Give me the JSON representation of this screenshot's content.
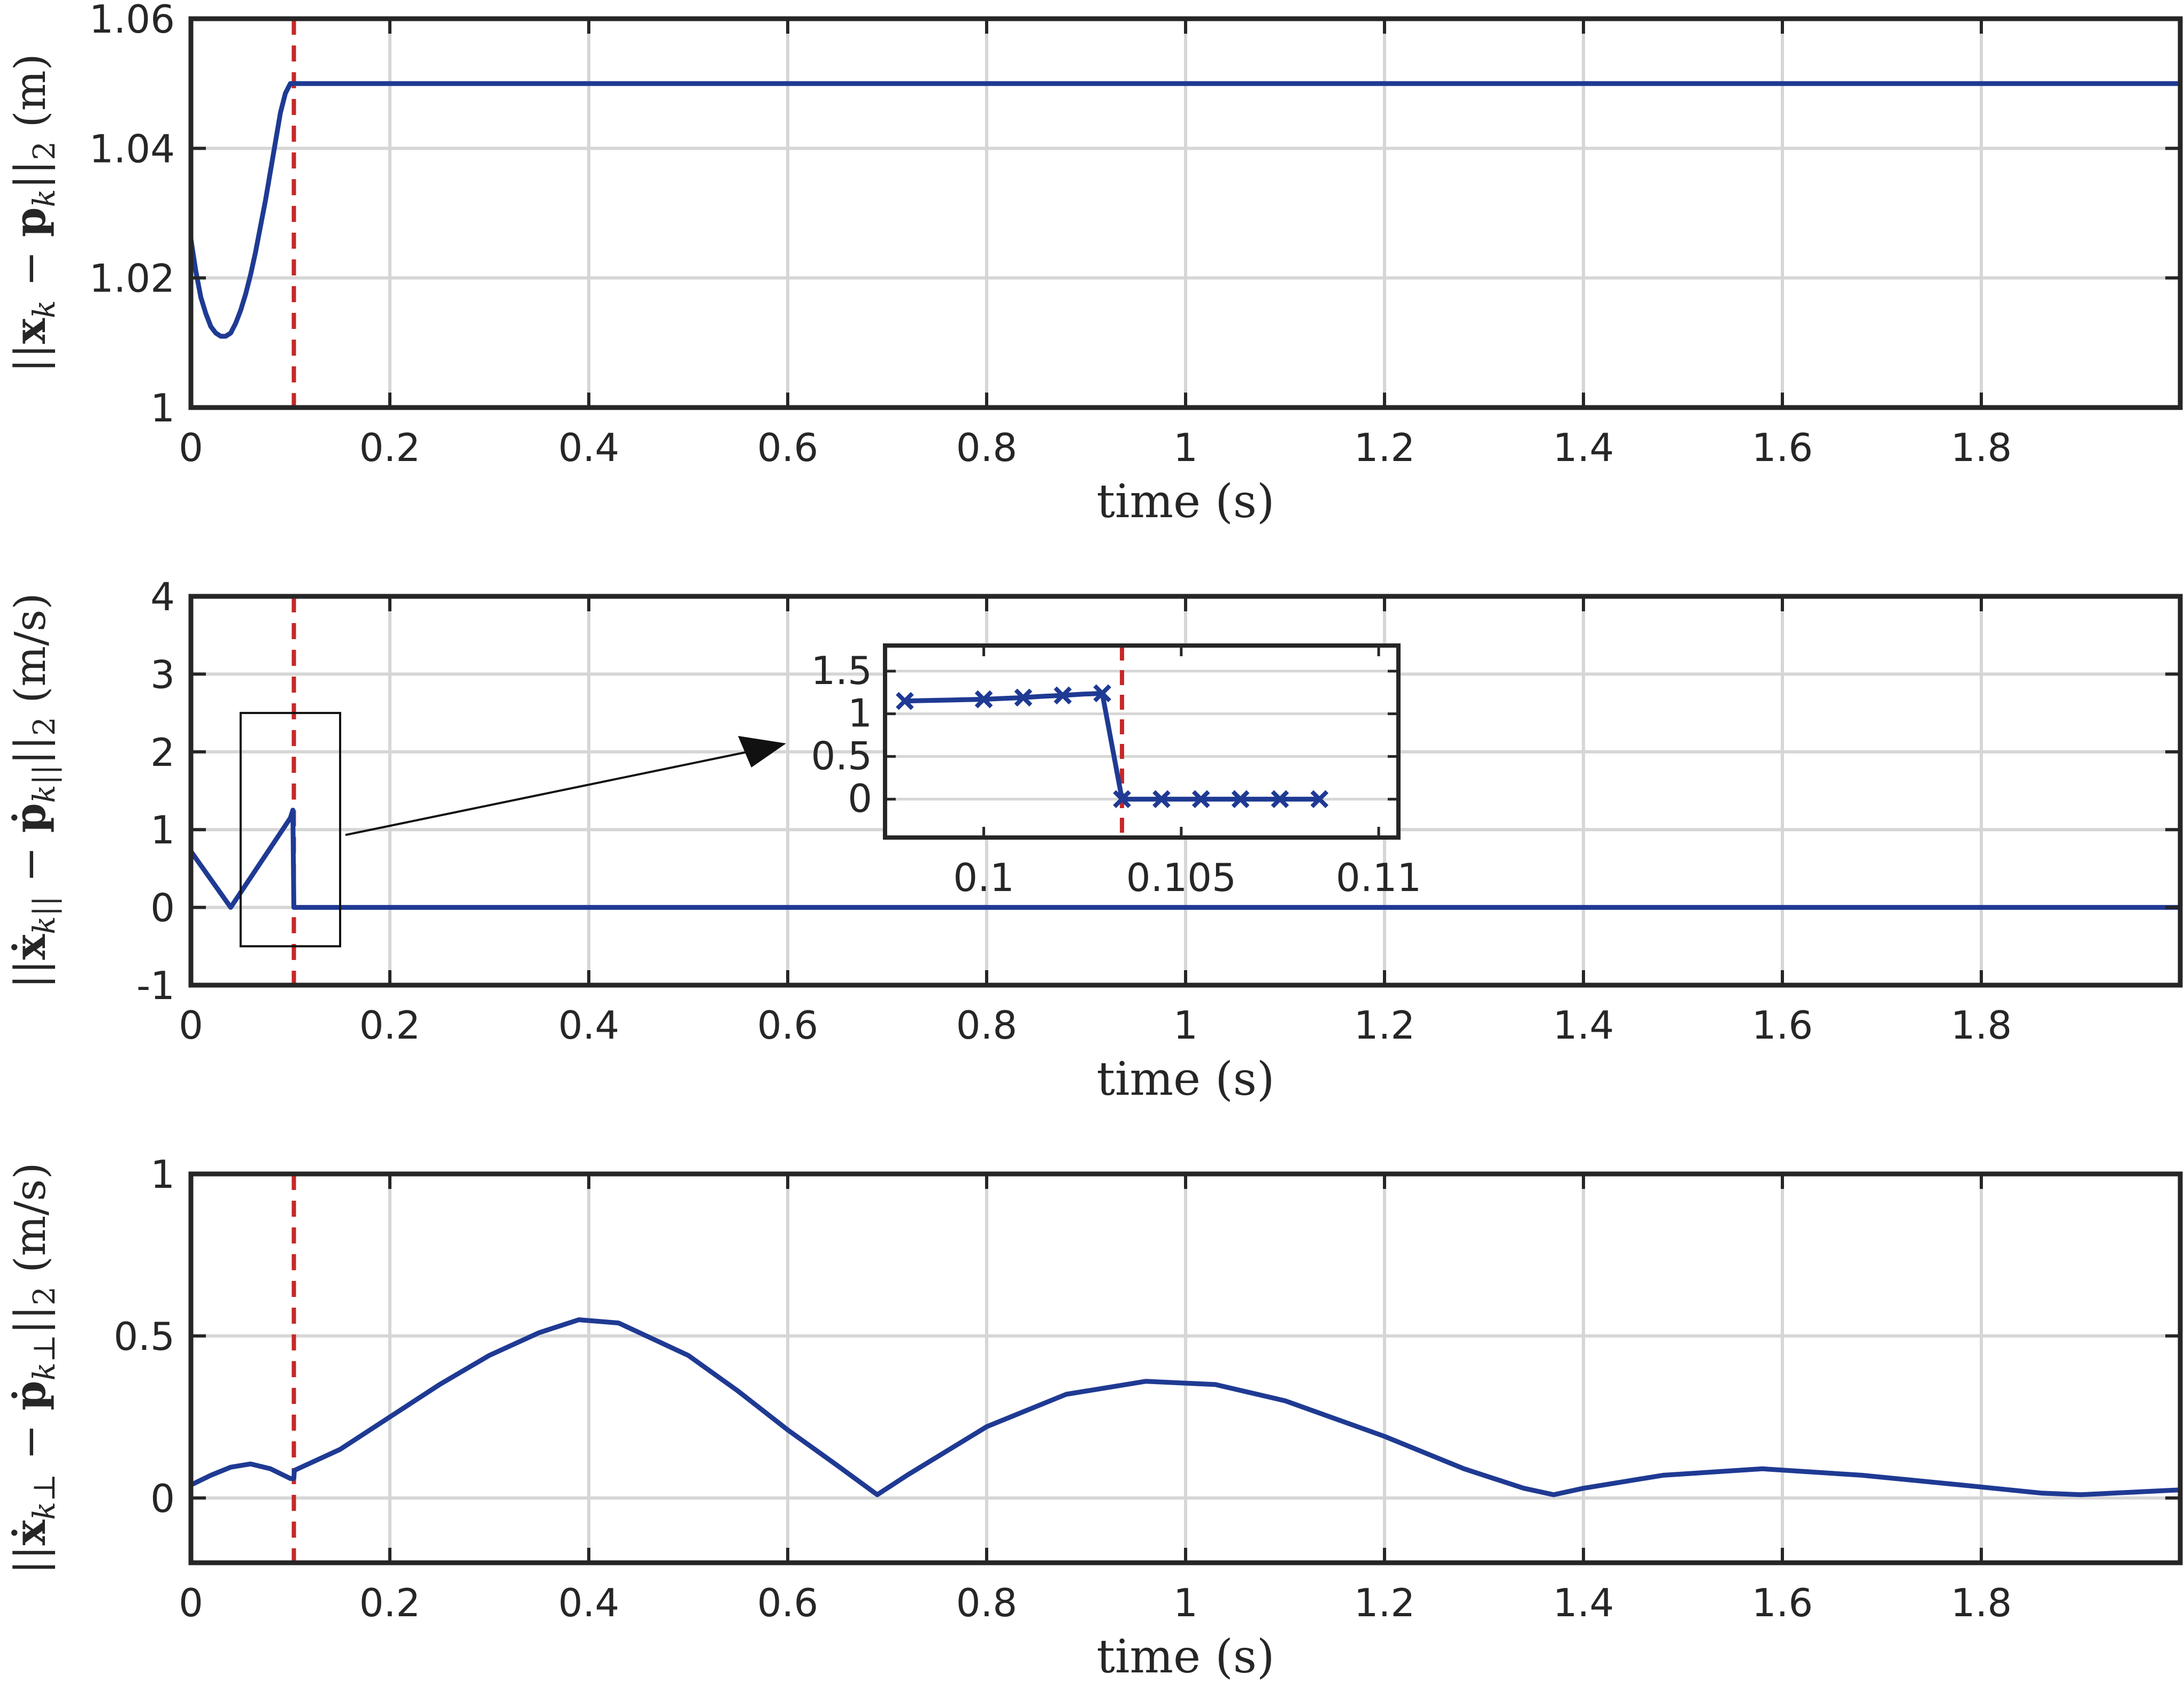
{
  "colors": {
    "series": "#1f3a93",
    "event_line": "#c62828",
    "grid": "#d6d6d6",
    "axes": "#262626"
  },
  "chart_data": [
    {
      "type": "line",
      "xlabel": "time (s)",
      "ylabel": "||x_k − p_k||_2 (m)",
      "ylabel_parts": {
        "open": "||",
        "x": "x",
        "k1": "k",
        "minus": " − ",
        "p": "p",
        "k2": "k",
        "close": "||",
        "two": "2",
        "unit": " (m)"
      },
      "xlim": [
        0,
        2.0
      ],
      "ylim": [
        1.0,
        1.06
      ],
      "xticks": [
        0,
        0.2,
        0.4,
        0.6,
        0.8,
        1,
        1.2,
        1.4,
        1.6,
        1.8
      ],
      "yticks": [
        1,
        1.02,
        1.04,
        1.06
      ],
      "xtick_labels": [
        "0",
        "0.2",
        "0.4",
        "0.6",
        "0.8",
        "1",
        "1.2",
        "1.4",
        "1.6",
        "1.8"
      ],
      "ytick_labels": [
        "1",
        "1.02",
        "1.04",
        "1.06"
      ],
      "grid": true,
      "vline_x": 0.1035,
      "series": [
        {
          "x": [
            0,
            0.005,
            0.01,
            0.015,
            0.02,
            0.025,
            0.03,
            0.035,
            0.04,
            0.045,
            0.05,
            0.055,
            0.06,
            0.065,
            0.07,
            0.075,
            0.08,
            0.085,
            0.09,
            0.095,
            0.1,
            0.1035,
            0.2,
            0.4,
            0.6,
            0.8,
            1.0,
            1.2,
            1.4,
            1.6,
            1.8,
            2.0
          ],
          "y": [
            1.026,
            1.021,
            1.017,
            1.0145,
            1.0125,
            1.0115,
            1.011,
            1.011,
            1.0115,
            1.013,
            1.015,
            1.0175,
            1.0205,
            1.024,
            1.028,
            1.032,
            1.0365,
            1.041,
            1.0455,
            1.0485,
            1.05,
            1.05,
            1.05,
            1.05,
            1.05,
            1.05,
            1.05,
            1.05,
            1.05,
            1.05,
            1.05,
            1.05
          ]
        }
      ]
    },
    {
      "type": "line",
      "xlabel": "time (s)",
      "ylabel": "||ẋ_k|| − ṗ_k||||_2 (m/s)",
      "ylabel_parts": {
        "open": "||",
        "x": "ẋ",
        "k1": "k||",
        "minus": " − ",
        "p": "ṗ",
        "k2": "k||",
        "close": "||",
        "two": "2",
        "unit": " (m/s)"
      },
      "xlim": [
        0,
        2.0
      ],
      "ylim": [
        -1,
        4
      ],
      "xticks": [
        0,
        0.2,
        0.4,
        0.6,
        0.8,
        1,
        1.2,
        1.4,
        1.6,
        1.8
      ],
      "yticks": [
        -1,
        0,
        1,
        2,
        3,
        4
      ],
      "xtick_labels": [
        "0",
        "0.2",
        "0.4",
        "0.6",
        "0.8",
        "1",
        "1.2",
        "1.4",
        "1.6",
        "1.8"
      ],
      "ytick_labels": [
        "-1",
        "0",
        "1",
        "2",
        "3",
        "4"
      ],
      "grid": true,
      "vline_x": 0.1035,
      "zoom_box": {
        "x": [
          0.05,
          0.15
        ],
        "y": [
          -0.5,
          2.5
        ]
      },
      "series": [
        {
          "x": [
            0,
            0.04,
            0.1,
            0.1025,
            0.1035,
            0.2,
            0.4,
            0.6,
            0.8,
            1.0,
            1.2,
            1.4,
            1.6,
            1.8,
            2.0
          ],
          "y": [
            0.72,
            0,
            1.15,
            1.25,
            0,
            0,
            0,
            0,
            0,
            0,
            0,
            0,
            0,
            0,
            0
          ]
        }
      ],
      "inset": {
        "xlim": [
          0.0975,
          0.1105
        ],
        "ylim": [
          -0.45,
          1.8
        ],
        "xticks": [
          0.1,
          0.105,
          0.11
        ],
        "yticks": [
          0,
          0.5,
          1,
          1.5
        ],
        "xtick_labels": [
          "0.1",
          "0.105",
          "0.11"
        ],
        "ytick_labels": [
          "0",
          "0.5",
          "1",
          "1.5"
        ],
        "vline_x": 0.1035,
        "x": [
          0.098,
          0.0985,
          0.099,
          0.0995,
          0.1,
          0.1005,
          0.101,
          0.1015,
          0.102,
          0.1025,
          0.103,
          0.1035,
          0.104,
          0.1045,
          0.105,
          0.1055,
          0.106,
          0.1065,
          0.107,
          0.1075,
          0.108,
          0.1085
        ],
        "y": [
          1.15,
          1.155,
          1.16,
          1.165,
          1.17,
          1.18,
          1.19,
          1.205,
          1.215,
          1.23,
          1.24,
          0,
          0,
          0,
          0,
          0,
          0,
          0,
          0,
          0,
          0,
          0
        ],
        "marker_x": [
          0.098,
          0.1,
          0.101,
          0.102,
          0.103,
          0.1035,
          0.1045,
          0.1055,
          0.1065,
          0.1075,
          0.1085
        ],
        "marker_y": [
          1.15,
          1.17,
          1.19,
          1.215,
          1.24,
          0,
          0,
          0,
          0,
          0,
          0
        ]
      }
    },
    {
      "type": "line",
      "xlabel": "time (s)",
      "ylabel": "||ẋ_k⊥ − ṗ_k⊥||_2 (m/s)",
      "ylabel_parts": {
        "open": "||",
        "x": "ẋ",
        "k1": "k⊥",
        "minus": " − ",
        "p": "ṗ",
        "k2": "k⊥",
        "close": "||",
        "two": "2",
        "unit": " (m/s)"
      },
      "xlim": [
        0,
        2.0
      ],
      "ylim": [
        -0.2,
        1.0
      ],
      "xticks": [
        0,
        0.2,
        0.4,
        0.6,
        0.8,
        1,
        1.2,
        1.4,
        1.6,
        1.8
      ],
      "yticks": [
        0,
        0.5,
        1
      ],
      "xtick_labels": [
        "0",
        "0.2",
        "0.4",
        "0.6",
        "0.8",
        "1",
        "1.2",
        "1.4",
        "1.6",
        "1.8"
      ],
      "ytick_labels": [
        "0",
        "0.5",
        "1"
      ],
      "grid": true,
      "vline_x": 0.1035,
      "series": [
        {
          "x": [
            0,
            0.02,
            0.04,
            0.06,
            0.08,
            0.1,
            0.1035,
            0.104,
            0.15,
            0.2,
            0.25,
            0.3,
            0.35,
            0.39,
            0.43,
            0.5,
            0.55,
            0.6,
            0.65,
            0.69,
            0.72,
            0.8,
            0.88,
            0.96,
            1.03,
            1.1,
            1.2,
            1.28,
            1.34,
            1.37,
            1.4,
            1.48,
            1.58,
            1.68,
            1.78,
            1.86,
            1.9,
            2.0
          ],
          "y": [
            0.04,
            0.07,
            0.095,
            0.105,
            0.09,
            0.06,
            0.06,
            0.085,
            0.15,
            0.25,
            0.35,
            0.44,
            0.51,
            0.55,
            0.54,
            0.44,
            0.33,
            0.21,
            0.1,
            0.01,
            0.07,
            0.22,
            0.32,
            0.36,
            0.35,
            0.3,
            0.19,
            0.09,
            0.03,
            0.01,
            0.03,
            0.07,
            0.09,
            0.07,
            0.04,
            0.015,
            0.01,
            0.025
          ]
        }
      ]
    }
  ]
}
